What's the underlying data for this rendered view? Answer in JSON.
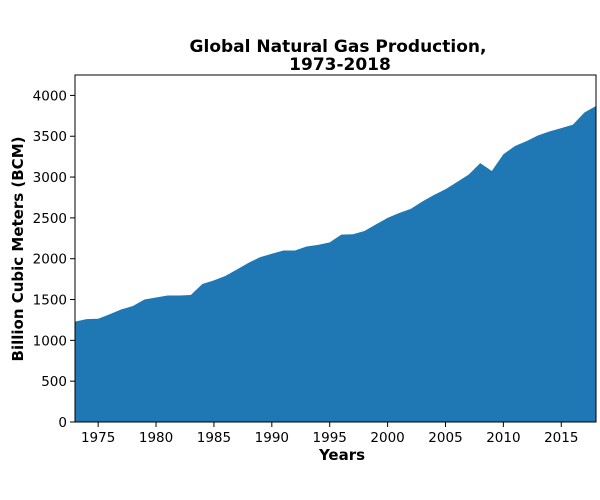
{
  "chart_data": {
    "type": "area",
    "title_lines": [
      "Global Natural Gas Production,",
      "1973-2018"
    ],
    "xlabel": "Years",
    "ylabel": "Billion Cubic Meters (BCM)",
    "xlim": [
      1973,
      2018
    ],
    "ylim": [
      0,
      4250
    ],
    "x_ticks": [
      1975,
      1980,
      1985,
      1990,
      1995,
      2000,
      2005,
      2010,
      2015
    ],
    "y_ticks": [
      0,
      500,
      1000,
      1500,
      2000,
      2500,
      3000,
      3500,
      4000
    ],
    "grid": false,
    "fill_color": "#1f77b4",
    "x": [
      1973,
      1974,
      1975,
      1976,
      1977,
      1978,
      1979,
      1980,
      1981,
      1982,
      1983,
      1984,
      1985,
      1986,
      1987,
      1988,
      1989,
      1990,
      1991,
      1992,
      1993,
      1994,
      1995,
      1996,
      1997,
      1998,
      1999,
      2000,
      2001,
      2002,
      2003,
      2004,
      2005,
      2006,
      2007,
      2008,
      2009,
      2010,
      2011,
      2012,
      2013,
      2014,
      2015,
      2016,
      2017,
      2018
    ],
    "values": [
      1230,
      1260,
      1265,
      1320,
      1380,
      1420,
      1500,
      1525,
      1550,
      1550,
      1555,
      1690,
      1735,
      1790,
      1870,
      1950,
      2020,
      2060,
      2100,
      2100,
      2150,
      2170,
      2200,
      2295,
      2300,
      2340,
      2420,
      2500,
      2560,
      2610,
      2700,
      2780,
      2850,
      2940,
      3030,
      3170,
      3075,
      3280,
      3380,
      3440,
      3510,
      3560,
      3600,
      3640,
      3790,
      3870
    ]
  }
}
